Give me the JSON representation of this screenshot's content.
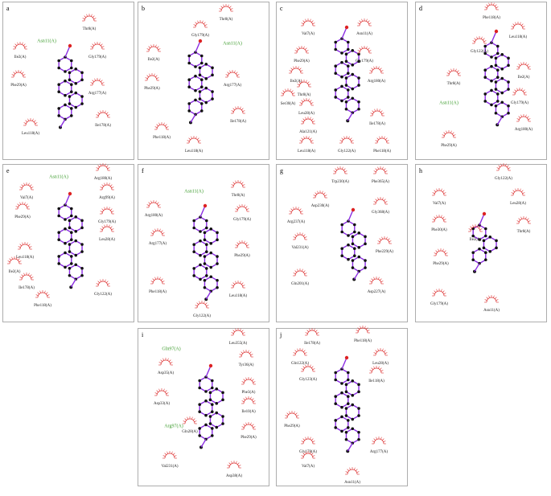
{
  "panels": [
    {
      "letter": "a",
      "residues": [
        "Asn11(A)",
        "Thr8(A)",
        "Ile2(A)",
        "Gly179(A)",
        "Phe29(A)",
        "Arg177(A)",
        "Ile178(A)",
        "Leu118(A)"
      ],
      "hbond": [
        0
      ]
    },
    {
      "letter": "b",
      "residues": [
        "Thr8(A)",
        "Gly179(A)",
        "Asn11(A)",
        "Ile2(A)",
        "Phe29(A)",
        "Arg177(A)",
        "Ile178(A)",
        "Phe118(A)",
        "Leu118(A)"
      ],
      "hbond": [
        2
      ]
    },
    {
      "letter": "c",
      "residues": [
        "Val7(A)",
        "Asn11(A)",
        "Phe29(A)",
        "Gly179(A)",
        "Ile2(A)",
        "Arg180(A)",
        "Thr8(A)",
        "Ser30(A)",
        "Leu28(A)",
        "Ile178(A)",
        "Ala121(A)",
        "Leu118(A)",
        "Gly122(A)",
        "Phe118(A)"
      ],
      "hbond": []
    },
    {
      "letter": "d",
      "residues": [
        "Phe118(A)",
        "Leu118(A)",
        "Gly122(A)",
        "Ile2(A)",
        "Thr8(A)",
        "Gly179(A)",
        "Asn11(A)",
        "Arg180(A)",
        "Phe29(A)"
      ],
      "hbond": [
        6
      ]
    },
    {
      "letter": "e",
      "residues": [
        "Asn11(A)",
        "Arg180(A)",
        "Val7(A)",
        "Arg99(A)",
        "Phe29(A)",
        "Gly179(A)",
        "Leu118(A)",
        "Ile2(A)",
        "Leu28(A)",
        "Ile178(A)",
        "Phe118(A)",
        "Gly122(A)"
      ],
      "hbond": [
        0
      ]
    },
    {
      "letter": "f",
      "residues": [
        "Asn11(A)",
        "Thr8(A)",
        "Arg180(A)",
        "Gly179(A)",
        "Arg177(A)",
        "Phe29(A)",
        "Phe118(A)",
        "Leu118(A)",
        "Gly122(A)"
      ],
      "hbond": [
        0
      ]
    },
    {
      "letter": "g",
      "residues": [
        "Trp230(A)",
        "Phe365(A)",
        "Asp230(A)",
        "Gly368(A)",
        "Arg237(A)",
        "Val231(A)",
        "Phe229(A)",
        "Gln201(A)",
        "Asp227(A)"
      ],
      "hbond": []
    },
    {
      "letter": "h",
      "residues": [
        "Gly122(A)",
        "Val7(A)",
        "Leu28(A)",
        "Phe30(A)",
        "Ile2(A)",
        "Thr8(A)",
        "Phe29(A)",
        "Gly179(A)",
        "Asn11(A)"
      ],
      "hbond": []
    },
    {
      "letter": "i",
      "residues": [
        "Gln97(A)",
        "Leu355(A)",
        "Tyr36(A)",
        "Asp35(A)",
        "Phe3(A)",
        "Asp33(A)",
        "Arg97(A)",
        "Ile10(A)",
        "Gln28(A)",
        "Phe29(A)",
        "Val231(A)",
        "Asp38(A)"
      ],
      "hbond": [
        0,
        6
      ]
    },
    {
      "letter": "j",
      "residues": [
        "Ile178(A)",
        "Phe118(A)",
        "Gln122(A)",
        "Leu28(A)",
        "Gly123(A)",
        "Ile118(A)",
        "Phe29(A)",
        "Gly178(A)",
        "Arg177(A)",
        "Val7(A)",
        "Asn11(A)"
      ],
      "hbond": []
    }
  ]
}
